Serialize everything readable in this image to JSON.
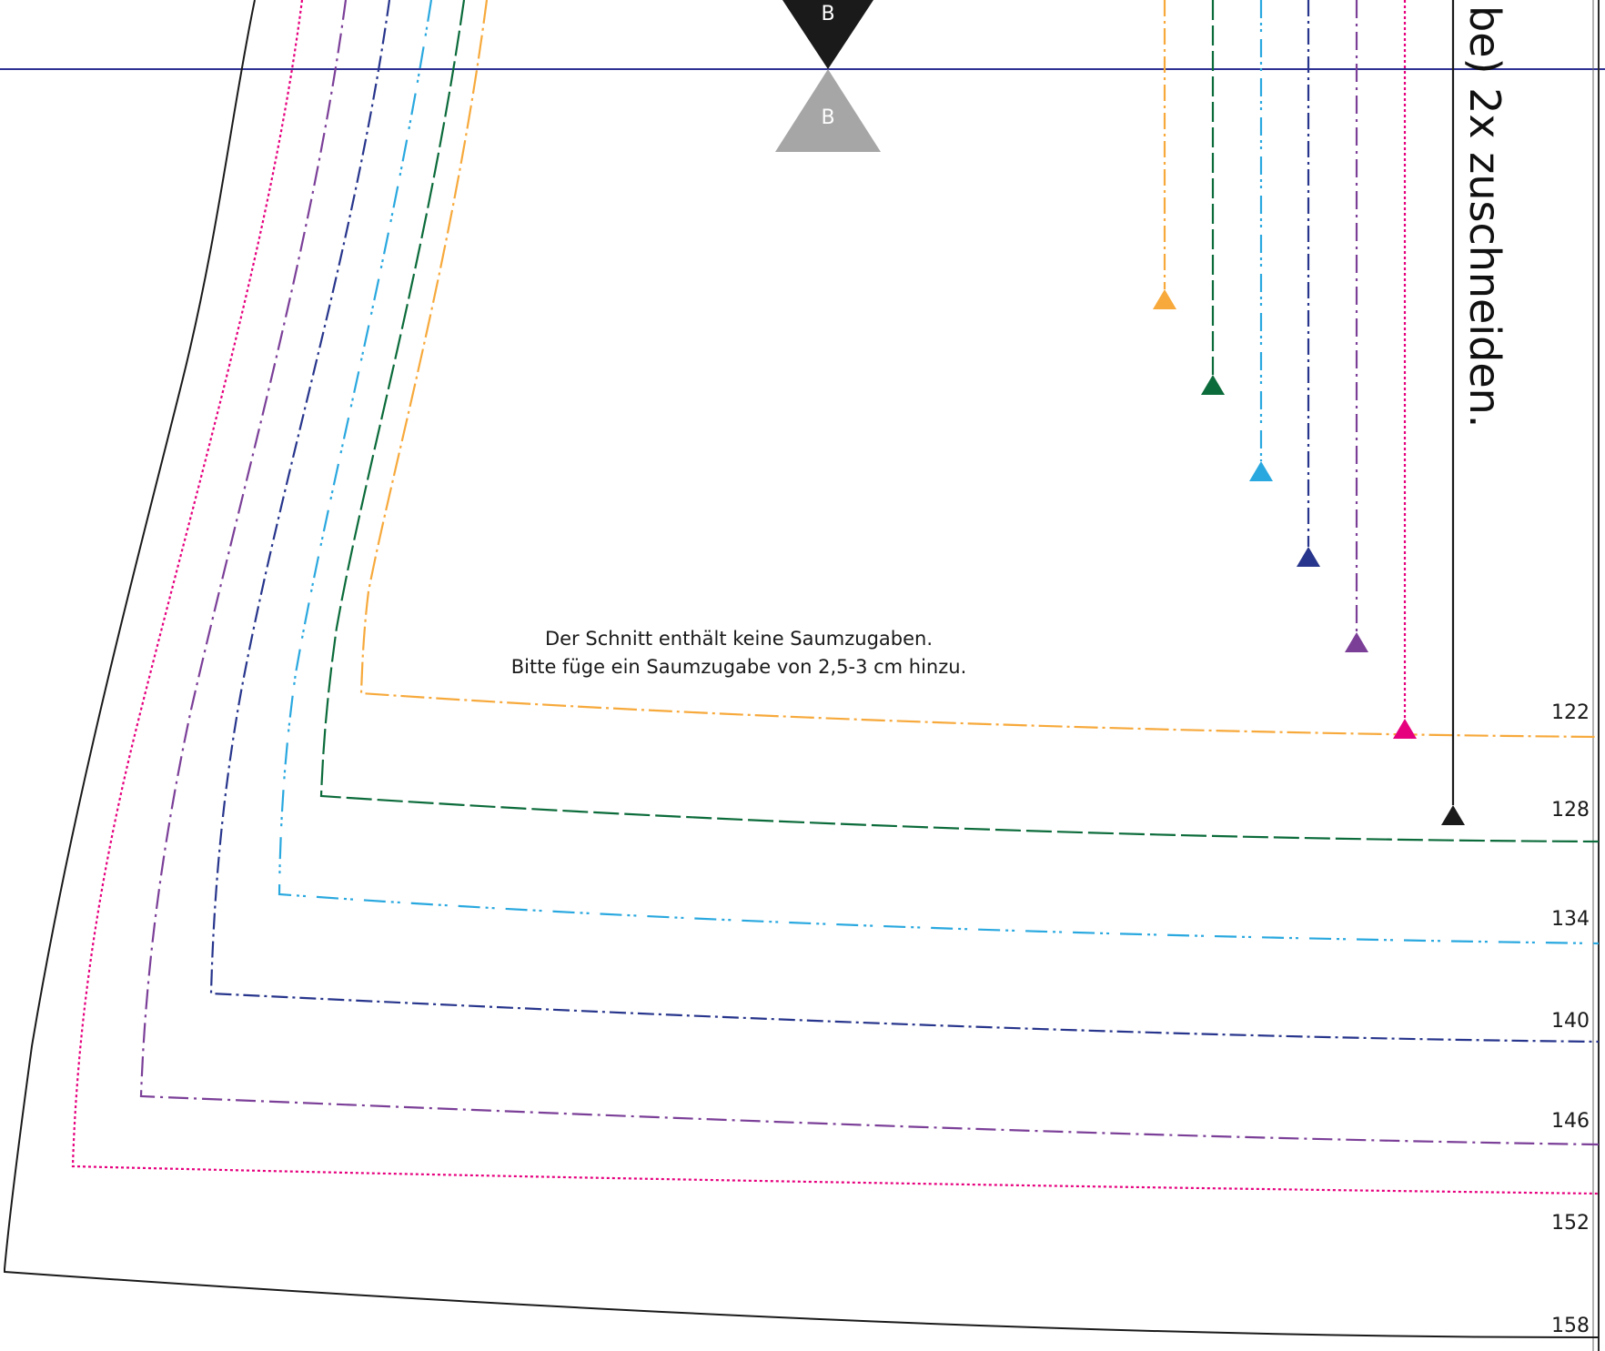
{
  "instruction_text": "be) 2x zuschneiden.",
  "notch_label_top": "B",
  "notch_label_bottom": "B",
  "note_lines": [
    "Der Schnitt enthält keine Saumzugaben.",
    "Bitte füge ein Saumzugabe von 2,5-3 cm hinzu."
  ],
  "size_labels": [
    "122",
    "128",
    "134",
    "140",
    "146",
    "152",
    "158"
  ],
  "colors": {
    "size_122": "#f7a93b",
    "size_128": "#0b6b3a",
    "size_134": "#29a8df",
    "size_140": "#27358c",
    "size_146": "#7b3f98",
    "size_152": "#e6007e",
    "size_158": "#1a1a1a",
    "guide_line": "#2e3192",
    "notch_top": "#1a1a1a",
    "notch_bottom": "#a6a6a6"
  }
}
